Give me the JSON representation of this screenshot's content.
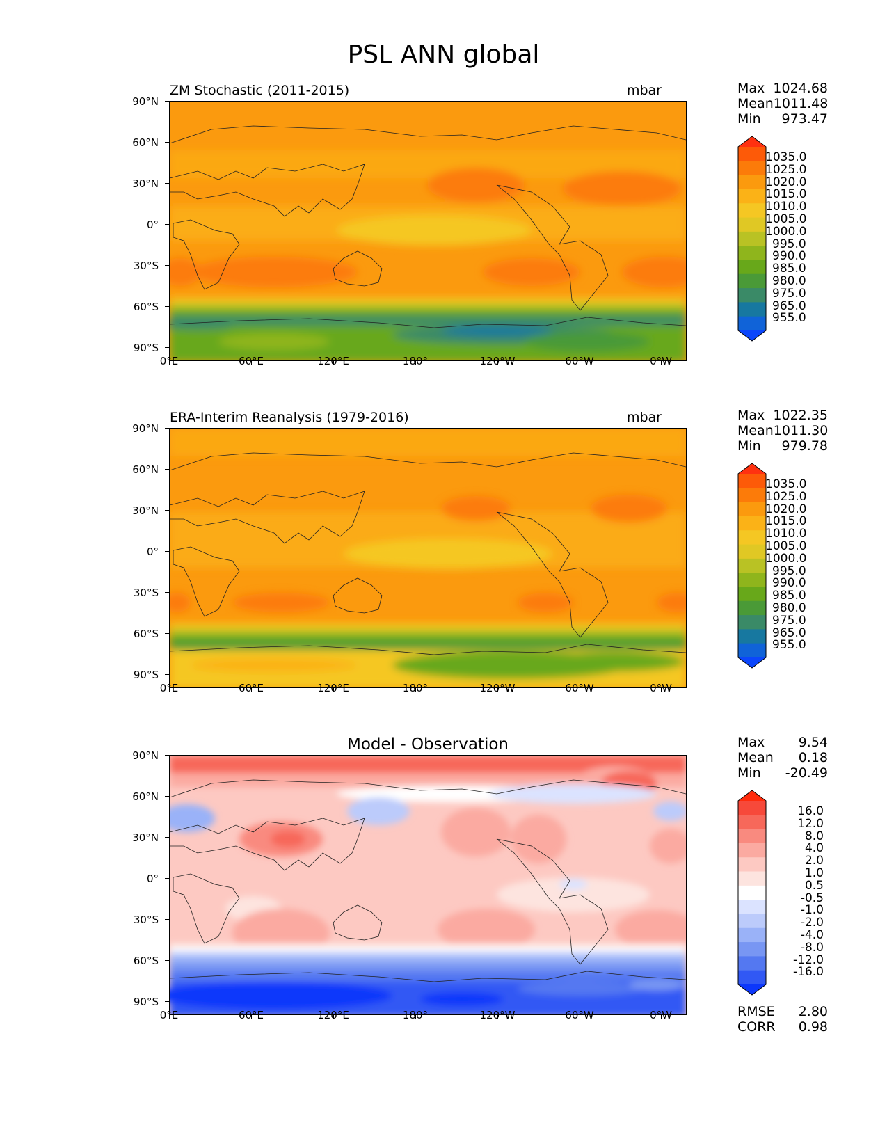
{
  "title": "PSL ANN global",
  "lat_labels": [
    "90°N",
    "60°N",
    "30°N",
    "0°",
    "30°S",
    "60°S",
    "90°S"
  ],
  "lon_labels": [
    "0°E",
    "60°E",
    "120°E",
    "180°",
    "120°W",
    "60°W",
    "0°W"
  ],
  "panels": [
    {
      "title": "ZM Stochastic (2011-2015)",
      "units": "mbar",
      "stats": {
        "max_label": "Max",
        "max": "1024.68",
        "mean_label": "Mean",
        "mean": "1011.48",
        "min_label": "Min",
        "min": "973.47"
      },
      "colorbar": {
        "levels": [
          "1035.0",
          "1025.0",
          "1020.0",
          "1015.0",
          "1010.0",
          "1005.0",
          "1000.0",
          "995.0",
          "990.0",
          "985.0",
          "980.0",
          "975.0",
          "965.0",
          "955.0"
        ],
        "colors": [
          "#ff3110",
          "#fd5a08",
          "#fc7b09",
          "#fb9a0e",
          "#fbb217",
          "#f5c723",
          "#e0c824",
          "#b9c224",
          "#8fb51c",
          "#68a81a",
          "#4a9a37",
          "#3a8a67",
          "#1778a0",
          "#1063d8",
          "#0b46fb"
        ]
      }
    },
    {
      "title": "ERA-Interim Reanalysis (1979-2016)",
      "units": "mbar",
      "stats": {
        "max_label": "Max",
        "max": "1022.35",
        "mean_label": "Mean",
        "mean": "1011.30",
        "min_label": "Min",
        "min": "979.78"
      },
      "colorbar": {
        "levels": [
          "1035.0",
          "1025.0",
          "1020.0",
          "1015.0",
          "1010.0",
          "1005.0",
          "1000.0",
          "995.0",
          "990.0",
          "985.0",
          "980.0",
          "975.0",
          "965.0",
          "955.0"
        ],
        "colors": [
          "#ff3110",
          "#fd5a08",
          "#fc7b09",
          "#fb9a0e",
          "#fbb217",
          "#f5c723",
          "#e0c824",
          "#b9c224",
          "#8fb51c",
          "#68a81a",
          "#4a9a37",
          "#3a8a67",
          "#1778a0",
          "#1063d8",
          "#0b46fb"
        ]
      }
    },
    {
      "title": "Model - Observation",
      "units": "",
      "stats": {
        "max_label": "Max",
        "max": "9.54",
        "mean_label": "Mean",
        "mean": "0.18",
        "min_label": "Min",
        "min": "-20.49"
      },
      "metrics": {
        "rmse_label": "RMSE",
        "rmse": "2.80",
        "corr_label": "CORR",
        "corr": "0.98"
      },
      "colorbar": {
        "levels": [
          "16.0",
          "12.0",
          "8.0",
          "4.0",
          "2.0",
          "1.0",
          "0.5",
          "-0.5",
          "-1.0",
          "-2.0",
          "-4.0",
          "-8.0",
          "-12.0",
          "-16.0"
        ],
        "colors": [
          "#ff2b0c",
          "#f7493a",
          "#f7685a",
          "#f98a7f",
          "#fbaaa1",
          "#fdc9c2",
          "#fde4df",
          "#ffffff",
          "#dbe3ff",
          "#bccbfb",
          "#9ab2f8",
          "#7896f3",
          "#5478f1",
          "#3158f4",
          "#0c37fb"
        ]
      }
    }
  ]
}
